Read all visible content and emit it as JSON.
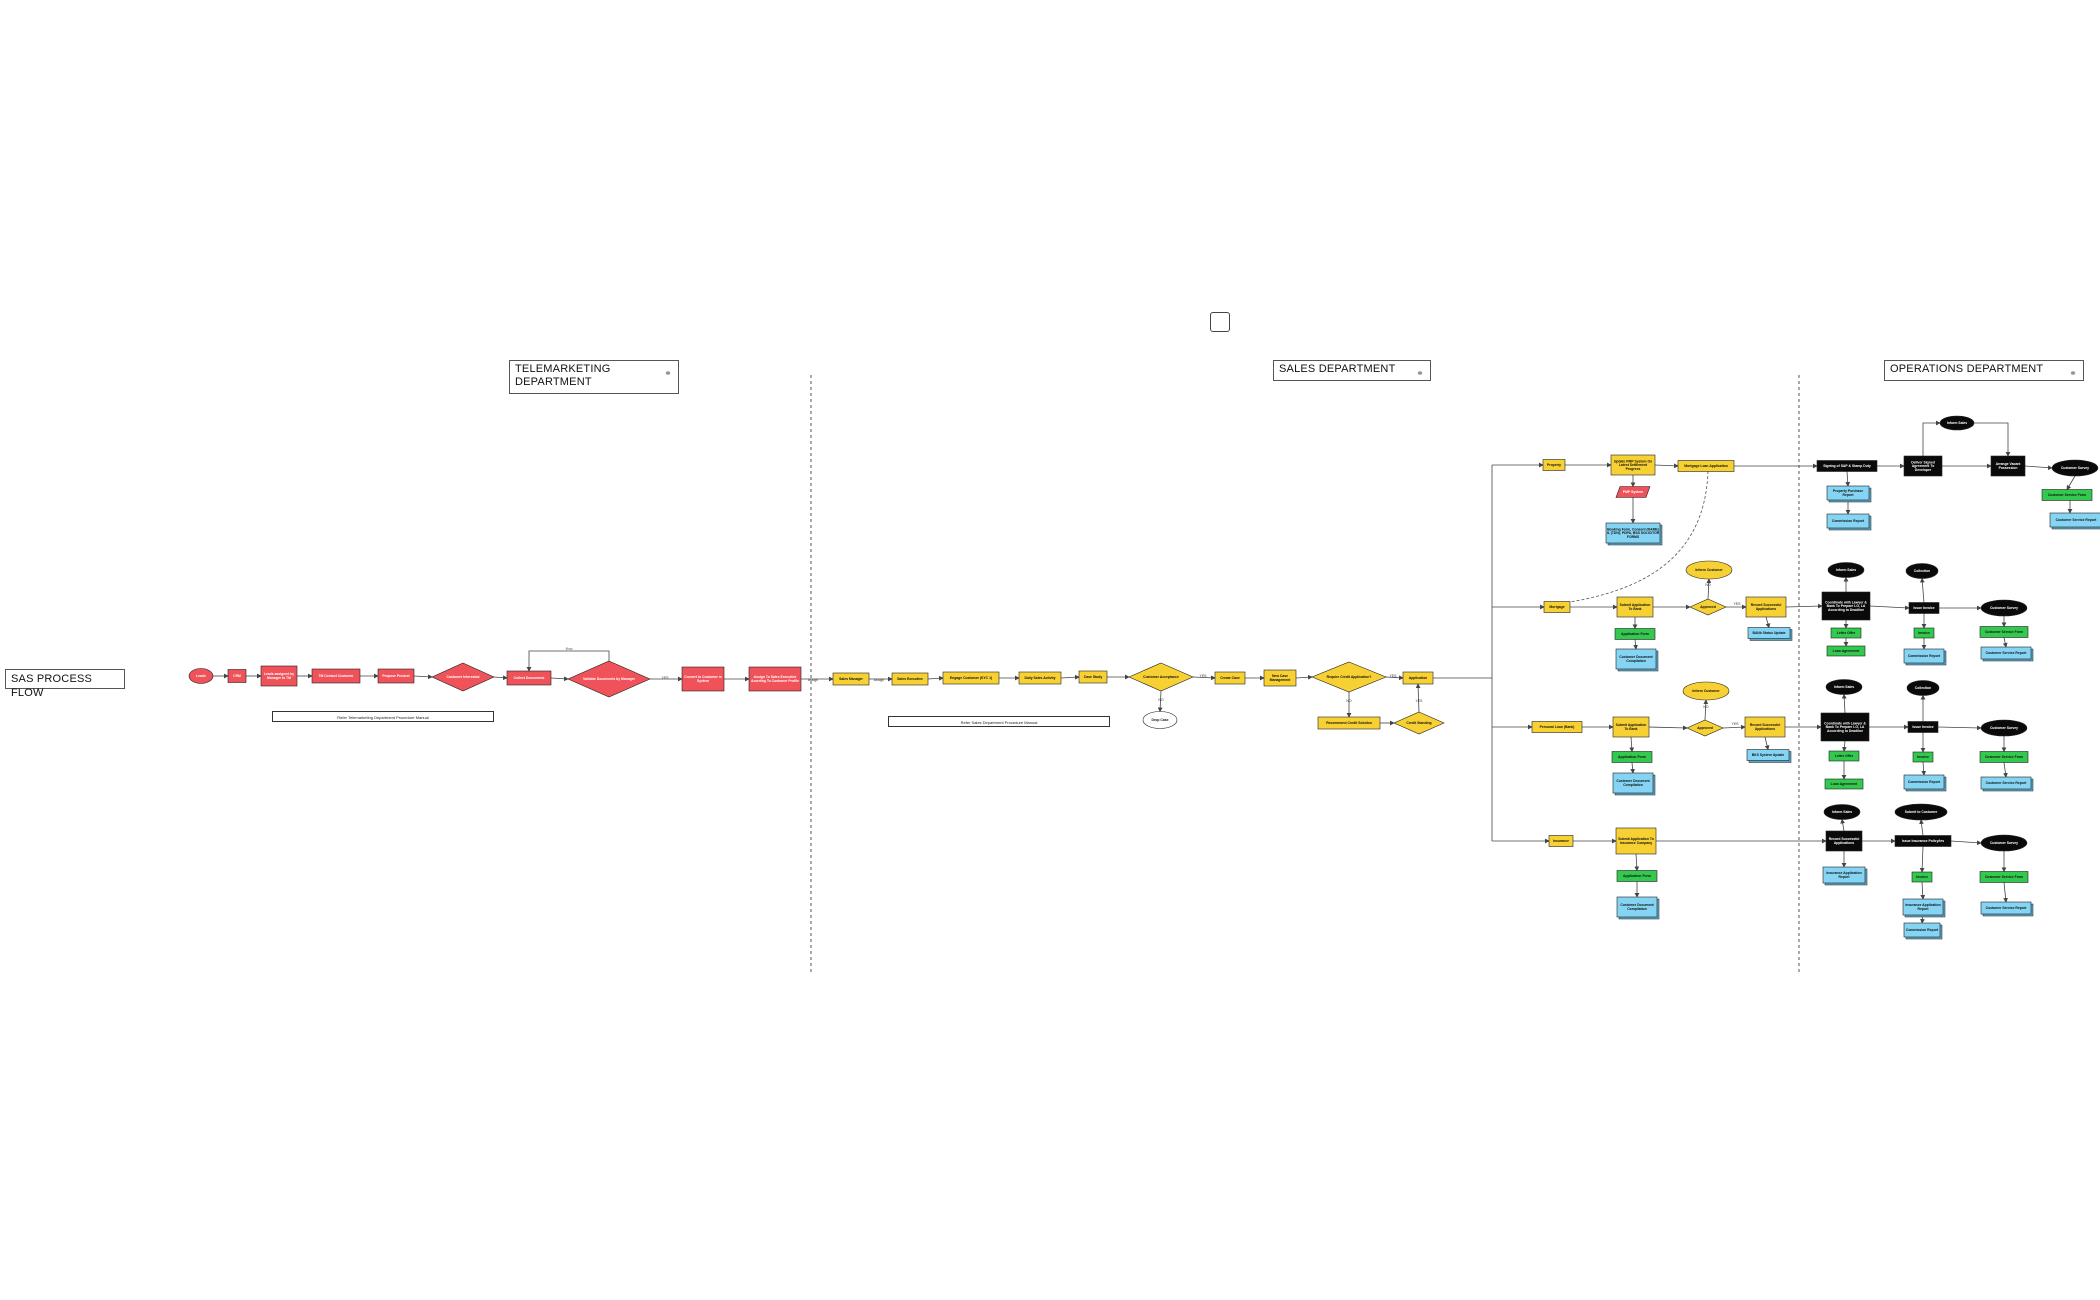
{
  "page": {
    "process_title": "SAS PROCESS FLOW",
    "departments": [
      {
        "id": "tele",
        "label": "TELEMARKETING DEPARTMENT",
        "icon": "link-icon"
      },
      {
        "id": "sales",
        "label": "SALES DEPARTMENT",
        "icon": "link-icon"
      },
      {
        "id": "ops",
        "label": "OPERATIONS DEPARTMENT",
        "icon": "link-icon"
      }
    ],
    "manuals": {
      "tele": "Refer Telemarketing Department Procedure Manual",
      "sales": "Refer Sales Department Procedure Manual"
    }
  },
  "colors": {
    "red": "#f0525a",
    "yellow": "#f7d033",
    "black": "#0a0a0a",
    "green": "#33c94e",
    "blue": "#86d4f3",
    "line": "#444444"
  },
  "nodes": {
    "n_leads": {
      "label": "Leads",
      "type": "ellipse",
      "color": "red"
    },
    "n_crm": {
      "label": "CRM",
      "type": "rect",
      "color": "red"
    },
    "n_assign_tm": {
      "label": "Leads assigned by Manager to TM",
      "type": "rect",
      "color": "red"
    },
    "n_tm_contact": {
      "label": "TM Contact Customer",
      "type": "rect",
      "color": "red"
    },
    "n_propose": {
      "label": "Propose Product",
      "type": "rect",
      "color": "red"
    },
    "n_interested": {
      "label": "Customer Interested",
      "type": "diamond",
      "color": "red"
    },
    "n_collect_docs": {
      "label": "Collect Documents",
      "type": "rect",
      "color": "red"
    },
    "n_validate": {
      "label": "Validate Documents by Manager",
      "type": "diamond",
      "color": "red"
    },
    "n_convert": {
      "label": "Convert to Customer in System",
      "type": "rect",
      "color": "red"
    },
    "n_assign_exec": {
      "label": "Assign To Sales Executive Acording To Customer Profile",
      "type": "rect",
      "color": "red"
    },
    "n_sales_mgr": {
      "label": "Sales Manager",
      "type": "rect",
      "color": "yellow"
    },
    "n_sales_exec": {
      "label": "Sales Executive",
      "type": "rect",
      "color": "yellow"
    },
    "n_engage": {
      "label": "Engage Customer (KYC 1)",
      "type": "rect",
      "color": "yellow"
    },
    "n_daily": {
      "label": "Daily Sales Activity",
      "type": "rect",
      "color": "yellow"
    },
    "n_case_study": {
      "label": "Case Study",
      "type": "rect",
      "color": "yellow"
    },
    "n_acceptance": {
      "label": "Customer Acceptance",
      "type": "diamond",
      "color": "yellow"
    },
    "n_drop": {
      "label": "Drop Case",
      "type": "ellipse",
      "color": "white"
    },
    "n_create_case": {
      "label": "Create Case",
      "type": "rect",
      "color": "yellow"
    },
    "n_new_case": {
      "label": "New Case Management",
      "type": "rect",
      "color": "yellow"
    },
    "n_credit_q": {
      "label": "Require Credit Application?",
      "type": "diamond",
      "color": "yellow"
    },
    "n_reco_credit": {
      "label": "Recommend Credit Solution",
      "type": "rect",
      "color": "yellow"
    },
    "n_credit_std": {
      "label": "Credit Standing",
      "type": "diamond",
      "color": "yellow"
    },
    "n_application": {
      "label": "Application",
      "type": "rect",
      "color": "yellow"
    },
    "n_property": {
      "label": "Property",
      "type": "rect",
      "color": "yellow"
    },
    "n_update_pmp": {
      "label": "Update PMP System On Latest Settlement Progress",
      "type": "rect",
      "color": "yellow"
    },
    "n_pmp_sys": {
      "label": "PMP System",
      "type": "para",
      "color": "red"
    },
    "n_booking": {
      "label": "Booking Form, Consent (NAME) IL (TDN), PDPA, BSS SOLICITOR FORMS",
      "type": "doc",
      "color": "blue"
    },
    "n_mortgage_app": {
      "label": "Mortgage Loan Application",
      "type": "rect",
      "color": "yellow"
    },
    "n_spa_sign": {
      "label": "Signing of S&P & Stamp Duty",
      "type": "rect",
      "color": "black"
    },
    "n_prop_report": {
      "label": "Property Purchase Report",
      "type": "doc",
      "color": "blue"
    },
    "n_comm1": {
      "label": "Commission Report",
      "type": "doc",
      "color": "blue"
    },
    "n_deliver": {
      "label": "Deliver Signed Agreement To Developer",
      "type": "rect",
      "color": "black"
    },
    "n_inform1": {
      "label": "Inform Sales",
      "type": "ellipse",
      "color": "black"
    },
    "n_arrange": {
      "label": "Arrange Vacant Possession",
      "type": "rect",
      "color": "black"
    },
    "n_survey1": {
      "label": "Customer Survey",
      "type": "ellipse",
      "color": "black"
    },
    "n_svcform1": {
      "label": "Customer Service Form",
      "type": "rect",
      "color": "green"
    },
    "n_svcrep1": {
      "label": "Customer Service Report",
      "type": "doc",
      "color": "blue"
    },
    "n_mortgage": {
      "label": "Mortgage",
      "type": "rect",
      "color": "yellow"
    },
    "n_submit_m": {
      "label": "Submit Application To Bank",
      "type": "rect",
      "color": "yellow"
    },
    "n_appform_m": {
      "label": "Application Form",
      "type": "rect",
      "color": "green"
    },
    "n_custdoc_m": {
      "label": "Customer Document Compilation",
      "type": "doc",
      "color": "blue"
    },
    "n_inform_cust_m": {
      "label": "Inform Customer",
      "type": "ellipse",
      "color": "yellow"
    },
    "n_approved_m": {
      "label": "Approved",
      "type": "diamond",
      "color": "yellow"
    },
    "n_record_m": {
      "label": "Record Successful Applications",
      "type": "rect",
      "color": "yellow"
    },
    "n_bank_m": {
      "label": "BANk Status Update",
      "type": "doc",
      "color": "blue"
    },
    "n_coord_m": {
      "label": "Coordinate with Lawyer & Bank To Prepare LO, LA According to Deadline",
      "type": "rect",
      "color": "black"
    },
    "n_inform_m": {
      "label": "Inform Sales",
      "type": "ellipse",
      "color": "black"
    },
    "n_letter_m": {
      "label": "Letter Offer",
      "type": "rect",
      "color": "green"
    },
    "n_loan_m": {
      "label": "Loan Agreement",
      "type": "rect",
      "color": "green"
    },
    "n_invoice_m": {
      "label": "Issue Invoice",
      "type": "rect",
      "color": "black"
    },
    "n_collect_m": {
      "label": "Collection",
      "type": "ellipse",
      "color": "black"
    },
    "n_inv_m": {
      "label": "Invoice",
      "type": "rect",
      "color": "green"
    },
    "n_comm_m": {
      "label": "Commission Report",
      "type": "doc",
      "color": "blue"
    },
    "n_survey_m": {
      "label": "Customer Survey",
      "type": "ellipse",
      "color": "black"
    },
    "n_svcform_m": {
      "label": "Customer Service Form",
      "type": "rect",
      "color": "green"
    },
    "n_svcrep_m": {
      "label": "Customer Service Report",
      "type": "doc",
      "color": "blue"
    },
    "n_personal": {
      "label": "Personal Loan (Bank)",
      "type": "rect",
      "color": "yellow"
    },
    "n_submit_p": {
      "label": "Submit Application To Bank",
      "type": "rect",
      "color": "yellow"
    },
    "n_appform_p": {
      "label": "Application Form",
      "type": "rect",
      "color": "green"
    },
    "n_custdoc_p": {
      "label": "Customer Document Compilation",
      "type": "doc",
      "color": "blue"
    },
    "n_inform_cust_p": {
      "label": "Inform Customer",
      "type": "ellipse",
      "color": "yellow"
    },
    "n_approved_p": {
      "label": "Approved",
      "type": "diamond",
      "color": "yellow"
    },
    "n_record_p": {
      "label": "Record Successful Applications",
      "type": "rect",
      "color": "yellow"
    },
    "n_bank_p": {
      "label": "BKS System Update",
      "type": "doc",
      "color": "blue"
    },
    "n_coord_p": {
      "label": "Coordinate with Lawyer & Bank To Prepare LO, LA According to Deadline",
      "type": "rect",
      "color": "black"
    },
    "n_inform_p": {
      "label": "Inform Sales",
      "type": "ellipse",
      "color": "black"
    },
    "n_letter_p": {
      "label": "Letter Offer",
      "type": "rect",
      "color": "green"
    },
    "n_loan_p": {
      "label": "Loan Agreement",
      "type": "rect",
      "color": "green"
    },
    "n_invoice_p": {
      "label": "Issue Invoice",
      "type": "rect",
      "color": "black"
    },
    "n_collect_p": {
      "label": "Collection",
      "type": "ellipse",
      "color": "black"
    },
    "n_inv_p": {
      "label": "Invoice",
      "type": "rect",
      "color": "green"
    },
    "n_comm_p": {
      "label": "Commission Report",
      "type": "doc",
      "color": "blue"
    },
    "n_survey_p": {
      "label": "Customer Survey",
      "type": "ellipse",
      "color": "black"
    },
    "n_svcform_p": {
      "label": "Customer Service Form",
      "type": "rect",
      "color": "green"
    },
    "n_svcrep_p": {
      "label": "Customer Service Report",
      "type": "doc",
      "color": "blue"
    },
    "n_insurance": {
      "label": "Insurance",
      "type": "rect",
      "color": "yellow"
    },
    "n_submit_i": {
      "label": "Submit Application To Insurance Company",
      "type": "rect",
      "color": "yellow"
    },
    "n_appform_i": {
      "label": "Application Form",
      "type": "rect",
      "color": "green"
    },
    "n_custdoc_i": {
      "label": "Customer Document Compilation",
      "type": "doc",
      "color": "blue"
    },
    "n_record_i": {
      "label": "Record Successful Applications",
      "type": "rect",
      "color": "black"
    },
    "n_inform_i": {
      "label": "Inform Sales",
      "type": "ellipse",
      "color": "black"
    },
    "n_insrep_i": {
      "label": "Insurance Application Report",
      "type": "doc",
      "color": "blue"
    },
    "n_issue_i": {
      "label": "Issue Insurance Policy/ies",
      "type": "rect",
      "color": "black"
    },
    "n_submit_cust_i": {
      "label": "Submit to Customer",
      "type": "ellipse",
      "color": "black"
    },
    "n_inv_i": {
      "label": "Invoice",
      "type": "rect",
      "color": "green"
    },
    "n_insrep2_i": {
      "label": "Insurance Application Report",
      "type": "doc",
      "color": "blue"
    },
    "n_comm_i": {
      "label": "Commission Report",
      "type": "doc",
      "color": "blue"
    },
    "n_survey_i": {
      "label": "Customer Survey",
      "type": "ellipse",
      "color": "black"
    },
    "n_svcform_i": {
      "label": "Customer Service Form",
      "type": "rect",
      "color": "green"
    },
    "n_svcrep_i": {
      "label": "Customer Service Report",
      "type": "doc",
      "color": "blue"
    }
  },
  "edge_labels": {
    "assign": "Assign",
    "yes": "YES",
    "no": "NO",
    "if_yes": "If yes",
    "if_no": "If no"
  }
}
